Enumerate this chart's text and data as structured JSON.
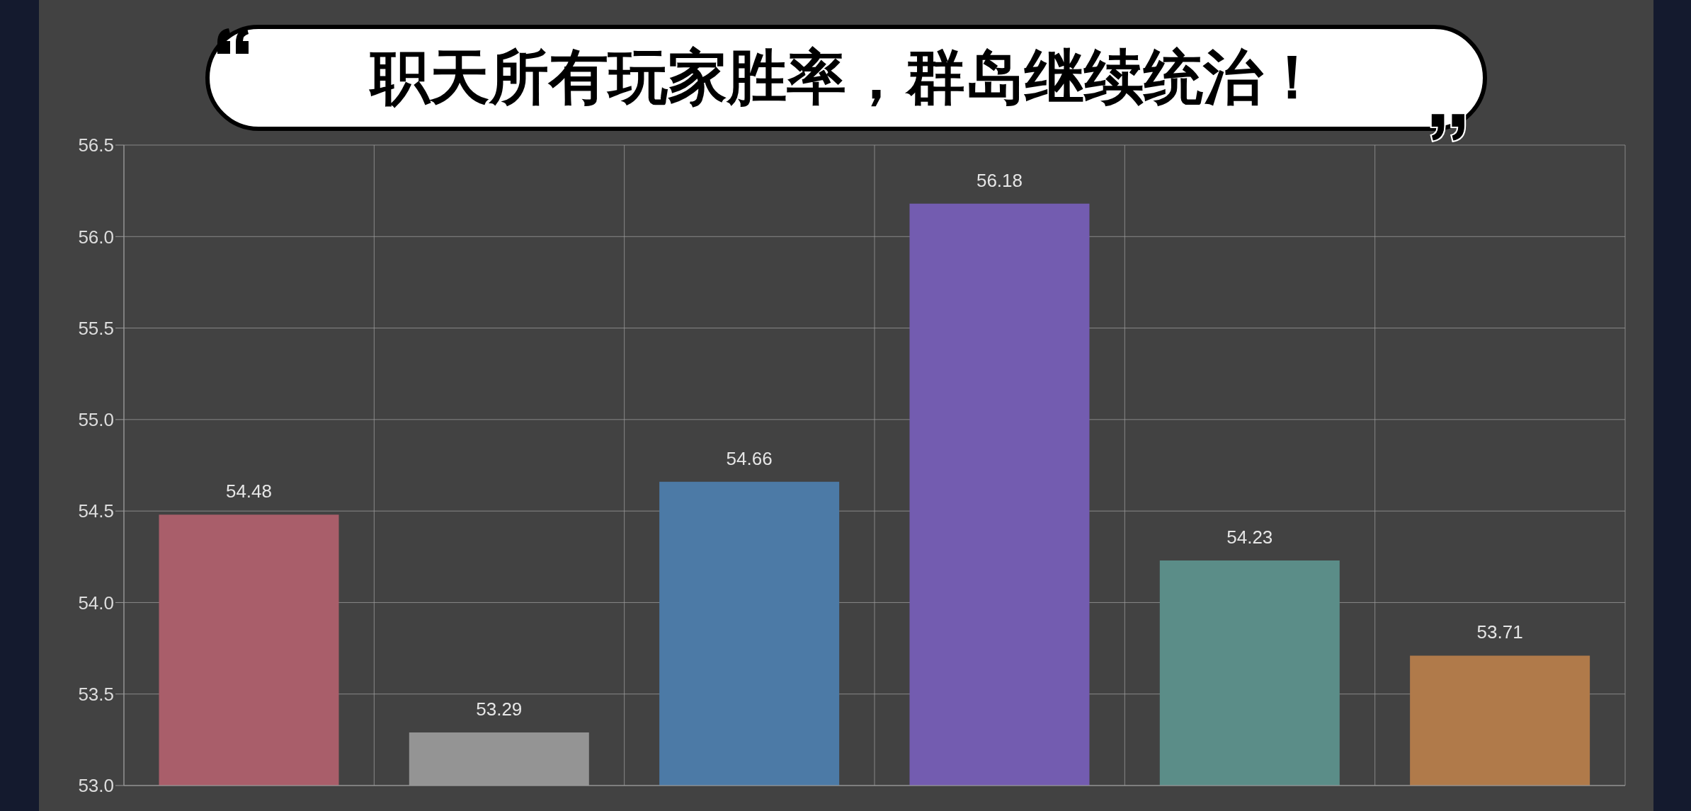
{
  "chart_data": {
    "type": "bar",
    "title": "职天所有玩家胜率，群岛继续统治！",
    "categories": [
      null,
      null,
      null,
      null,
      null,
      null
    ],
    "values": [
      54.48,
      53.29,
      54.66,
      56.18,
      54.23,
      53.71
    ],
    "colors": [
      "#a95e6a",
      "#949494",
      "#4c7aa6",
      "#735cb0",
      "#5b8d88",
      "#b07a4a"
    ],
    "ylim": [
      53.0,
      56.5
    ],
    "yticks": [
      {
        "value": 53.0,
        "label": "53.0"
      },
      {
        "value": 53.5,
        "label": "53.5"
      },
      {
        "value": 54.0,
        "label": "54.0"
      },
      {
        "value": 54.5,
        "label": "54.5"
      },
      {
        "value": 55.0,
        "label": "55.0"
      },
      {
        "value": 55.5,
        "label": "55.5"
      },
      {
        "value": 56.0,
        "label": "56.0"
      },
      {
        "value": 56.5,
        "label": "56.5"
      }
    ],
    "grid": true,
    "data_labels": true
  }
}
